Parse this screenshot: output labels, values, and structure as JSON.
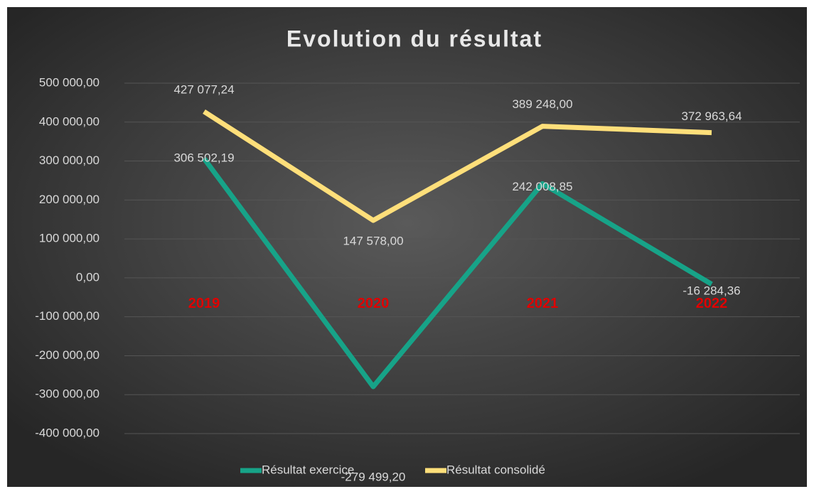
{
  "chart_data": {
    "type": "line",
    "title": "Evolution du résultat",
    "categories": [
      "2019",
      "2020",
      "2021",
      "2022"
    ],
    "series": [
      {
        "name": "Résultat exercice",
        "color": "#17a388",
        "values": [
          306502.19,
          -279499.2,
          242008.85,
          -16284.36
        ],
        "value_labels": [
          "306 502,19",
          "-279 499,20",
          "242 008,85",
          "-16 284,36"
        ]
      },
      {
        "name": "Résultat consolidé",
        "color": "#ffdf7a",
        "values": [
          427077.24,
          147578.0,
          389248.0,
          372963.64
        ],
        "value_labels": [
          "427 077,24",
          "147 578,00",
          "389 248,00",
          "372 963,64"
        ]
      }
    ],
    "ylim": [
      -400000,
      500000
    ],
    "yticks": [
      {
        "value": 500000,
        "label": "500 000,00"
      },
      {
        "value": 400000,
        "label": "400 000,00"
      },
      {
        "value": 300000,
        "label": "300 000,00"
      },
      {
        "value": 200000,
        "label": "200 000,00"
      },
      {
        "value": 100000,
        "label": "100 000,00"
      },
      {
        "value": 0,
        "label": "0,00"
      },
      {
        "value": -100000,
        "label": "-100 000,00"
      },
      {
        "value": -200000,
        "label": "-200 000,00"
      },
      {
        "value": -300000,
        "label": "-300 000,00"
      },
      {
        "value": -400000,
        "label": "-400 000,00"
      }
    ],
    "grid": true,
    "legend": "bottom"
  }
}
